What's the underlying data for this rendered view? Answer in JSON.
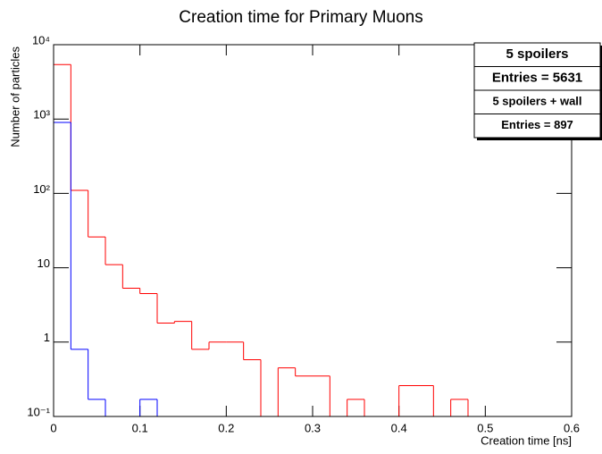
{
  "chart_data": {
    "type": "histogram",
    "title": "Creation time for Primary Muons",
    "x_label": "Creation time [ns]",
    "y_label": "Number of particles",
    "bins": [
      0,
      0.02,
      0.04,
      0.06,
      0.08,
      0.1,
      0.12,
      0.14,
      0.16,
      0.18,
      0.2,
      0.22,
      0.24,
      0.26,
      0.28,
      0.3,
      0.32,
      0.34,
      0.36,
      0.38,
      0.4,
      0.42,
      0.44,
      0.46,
      0.48,
      0.5,
      0.52,
      0.54,
      0.56,
      0.58,
      0.6
    ],
    "series": [
      {
        "name": "5 spoilers",
        "stats": "Entries = 5631",
        "color": "#ff0000",
        "values": [
          5400,
          110,
          26,
          11,
          5.3,
          4.5,
          1.8,
          1.9,
          0.8,
          1,
          1,
          0.58,
          0,
          0.45,
          0.35,
          0.35,
          0,
          0.17,
          0,
          0,
          0.26,
          0.26,
          0,
          0.17,
          0,
          0,
          0,
          0,
          0,
          0
        ]
      },
      {
        "name": "5 spoilers + wall",
        "stats": "Entries = 897",
        "color": "#0000ff",
        "values": [
          900,
          0.8,
          0.17,
          0,
          0,
          0.17,
          0,
          0,
          0,
          0,
          0,
          0,
          0,
          0,
          0,
          0,
          0,
          0,
          0,
          0,
          0,
          0,
          0,
          0,
          0,
          0,
          0,
          0,
          0,
          0
        ]
      }
    ],
    "xlim": [
      0,
      0.6
    ],
    "xticks": [
      0,
      0.1,
      0.2,
      0.3,
      0.4,
      0.5,
      0.6
    ],
    "ylim": [
      0.1,
      10000
    ],
    "ylog": true,
    "yticks": [
      {
        "value": 0.1,
        "label": "10⁻¹"
      },
      1,
      10,
      {
        "value": 100,
        "label": "10²"
      },
      {
        "value": 1000,
        "label": "10³"
      },
      {
        "value": 10000,
        "label": "10⁴"
      }
    ],
    "legend": "upper right"
  }
}
